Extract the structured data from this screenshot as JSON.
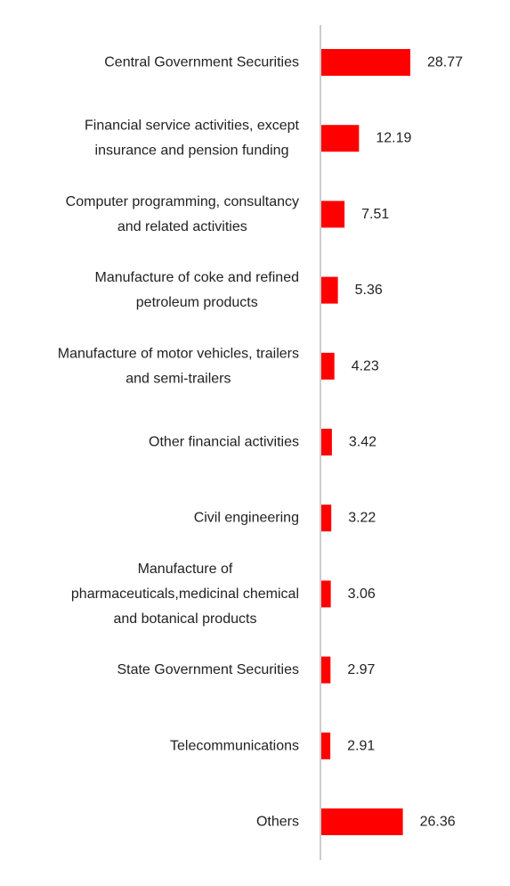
{
  "chart_data": {
    "type": "bar",
    "orientation": "horizontal",
    "categories": [
      [
        "Central Government Securities"
      ],
      [
        "Financial service activities, except",
        "insurance and pension funding"
      ],
      [
        "Computer programming, consultancy",
        "and related activities"
      ],
      [
        "Manufacture of coke and refined",
        "petroleum products"
      ],
      [
        "Manufacture of motor vehicles, trailers",
        "and semi-trailers"
      ],
      [
        "Other financial activities"
      ],
      [
        "Civil engineering"
      ],
      [
        "Manufacture of",
        "pharmaceuticals,medicinal chemical",
        "and botanical products"
      ],
      [
        "State Government Securities"
      ],
      [
        "Telecommunications"
      ],
      [
        "Others"
      ]
    ],
    "values": [
      28.77,
      12.19,
      7.51,
      5.36,
      4.23,
      3.42,
      3.22,
      3.06,
      2.97,
      2.91,
      26.36
    ],
    "value_labels": [
      "28.77",
      "12.19",
      "7.51",
      "5.36",
      "4.23",
      "3.42",
      "3.22",
      "3.06",
      "2.97",
      "2.91",
      "26.36"
    ],
    "bar_color": "#ff0000",
    "axis_color": "#cccccc",
    "label_color": "#222222",
    "grid": false,
    "legend": "none"
  }
}
